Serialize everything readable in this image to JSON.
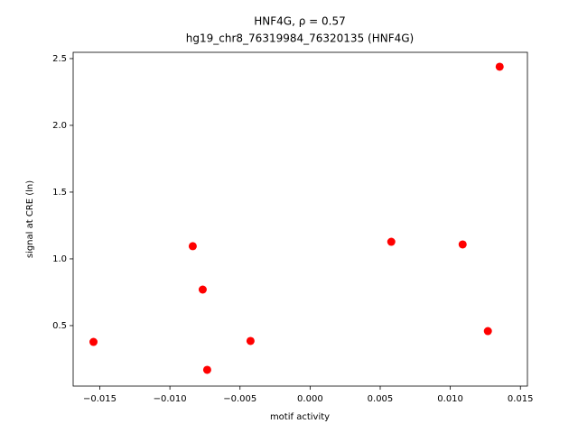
{
  "chart_data": {
    "type": "scatter",
    "title": "HNF4G, ρ = 0.57",
    "subtitle": "hg19_chr8_76319984_76320135 (HNF4G)",
    "x_label": "motif activity",
    "y_label": "signal at CRE (ln)",
    "series": [
      {
        "color": "#ff0000",
        "x": [
          -0.01545,
          -0.00837,
          -0.00766,
          -0.00734,
          -0.00425,
          0.00579,
          0.01088,
          0.01268,
          0.01352
        ],
        "values": [
          0.378,
          1.095,
          0.77,
          0.169,
          0.385,
          1.128,
          1.108,
          0.459,
          2.439
        ]
      }
    ],
    "xlim": [
      -0.0169,
      0.0155
    ],
    "ylim": [
      0.047,
      2.547
    ],
    "xticks": [
      {
        "value": -0.015,
        "label": "−0.015"
      },
      {
        "value": -0.01,
        "label": "−0.010"
      },
      {
        "value": -0.005,
        "label": "−0.005"
      },
      {
        "value": 0,
        "label": "0.000"
      },
      {
        "value": 0.005,
        "label": "0.005"
      },
      {
        "value": 0.01,
        "label": "0.010"
      },
      {
        "value": 0.015,
        "label": "0.015"
      }
    ],
    "yticks": [
      0.5,
      {
        "value": 1,
        "label": "1.0"
      },
      1.5,
      {
        "value": 2,
        "label": "2.0"
      },
      2.5
    ],
    "grid": false
  }
}
